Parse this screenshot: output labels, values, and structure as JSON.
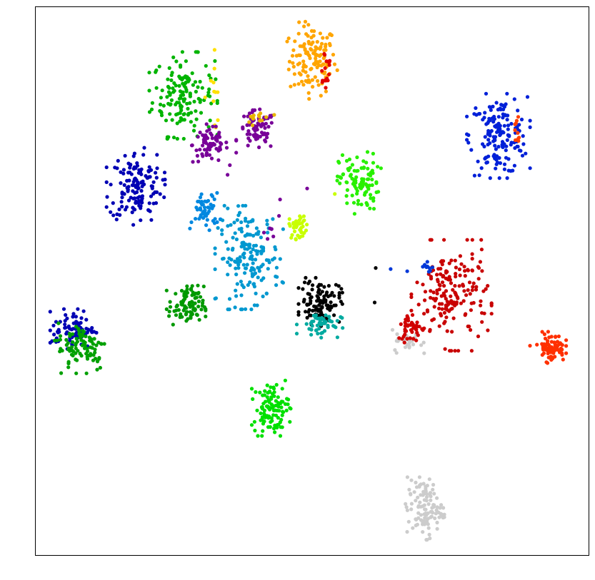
{
  "chart_data": {
    "type": "scatter",
    "title": "",
    "xlabel": "",
    "ylabel": "",
    "xlim": [
      0,
      100
    ],
    "ylim": [
      0,
      100
    ],
    "grid": false,
    "legend": "none",
    "ticks": "none",
    "clusters": [
      {
        "color": "#ffa500",
        "center": [
          50.1,
          90.3
        ],
        "spread": [
          2.1,
          3.2
        ],
        "n": 130
      },
      {
        "color": "#e00000",
        "center": [
          52.4,
          89.0
        ],
        "spread": [
          0.6,
          2.2
        ],
        "n": 18
      },
      {
        "color": "#00b400",
        "center": [
          26.7,
          83.9
        ],
        "spread": [
          2.8,
          3.6
        ],
        "n": 150
      },
      {
        "color": "#ffe000",
        "center": [
          32.1,
          84.5
        ],
        "spread": [
          0.9,
          3.5
        ],
        "n": 12
      },
      {
        "color": "#780098",
        "center": [
          31.6,
          74.9
        ],
        "spread": [
          1.6,
          1.7
        ],
        "n": 70
      },
      {
        "color": "#780098",
        "center": [
          40.0,
          77.4
        ],
        "spread": [
          1.7,
          1.8
        ],
        "n": 70
      },
      {
        "color": "#e8b400",
        "center": [
          40.5,
          79.8
        ],
        "spread": [
          1.2,
          0.8
        ],
        "n": 14
      },
      {
        "color": "#0020d8",
        "center": [
          83.7,
          76.5
        ],
        "spread": [
          2.6,
          3.5
        ],
        "n": 160
      },
      {
        "color": "#ff4000",
        "center": [
          87.1,
          77.3
        ],
        "spread": [
          0.4,
          2.0
        ],
        "n": 10
      },
      {
        "color": "#0000b4",
        "center": [
          18.1,
          67.3
        ],
        "spread": [
          2.4,
          3.2
        ],
        "n": 140
      },
      {
        "color": "#28f000",
        "center": [
          58.5,
          68.0
        ],
        "spread": [
          1.8,
          2.6
        ],
        "n": 100
      },
      {
        "color": "#0088e0",
        "center": [
          30.8,
          62.8
        ],
        "spread": [
          1.2,
          1.6
        ],
        "n": 55
      },
      {
        "color": "#c8ff00",
        "center": [
          47.6,
          60.0
        ],
        "spread": [
          0.9,
          1.1
        ],
        "n": 40
      },
      {
        "color": "#0098d0",
        "center": [
          38.6,
          54.3
        ],
        "spread": [
          2.8,
          4.3
        ],
        "n": 175
      },
      {
        "color": "#780098",
        "center": [
          42.6,
          59.0
        ],
        "spread": [
          0.6,
          0.6
        ],
        "n": 6
      },
      {
        "color": "#c80000",
        "center": [
          75.2,
          47.4
        ],
        "spread": [
          3.3,
          4.6
        ],
        "n": 180
      },
      {
        "color": "#0038d8",
        "center": [
          70.6,
          52.2
        ],
        "spread": [
          0.8,
          0.6
        ],
        "n": 10
      },
      {
        "color": "#000000",
        "center": [
          51.5,
          46.2
        ],
        "spread": [
          1.8,
          2.0
        ],
        "n": 110
      },
      {
        "color": "#00aaa0",
        "center": [
          51.4,
          42.1
        ],
        "spread": [
          1.9,
          1.1
        ],
        "n": 50
      },
      {
        "color": "#009900",
        "center": [
          27.2,
          45.4
        ],
        "spread": [
          1.6,
          1.8
        ],
        "n": 95
      },
      {
        "color": "#0000b4",
        "center": [
          6.8,
          41.3
        ],
        "spread": [
          1.9,
          1.7
        ],
        "n": 85
      },
      {
        "color": "#00a000",
        "center": [
          8.5,
          38.0
        ],
        "spread": [
          2.3,
          2.2
        ],
        "n": 90
      },
      {
        "color": "#cccccc",
        "center": [
          67.4,
          39.0
        ],
        "spread": [
          1.3,
          1.0
        ],
        "n": 35
      },
      {
        "color": "#d00000",
        "center": [
          68.0,
          41.6
        ],
        "spread": [
          1.3,
          1.3
        ],
        "n": 45
      },
      {
        "color": "#ff3000",
        "center": [
          93.3,
          37.9
        ],
        "spread": [
          1.2,
          1.3
        ],
        "n": 80
      },
      {
        "color": "#00e000",
        "center": [
          42.6,
          26.8
        ],
        "spread": [
          1.6,
          2.3
        ],
        "n": 110
      },
      {
        "color": "#cccccc",
        "center": [
          70.4,
          8.5
        ],
        "spread": [
          1.6,
          2.6
        ],
        "n": 110
      }
    ],
    "outliers": [
      {
        "color": "#000000",
        "x": 61.5,
        "y": 52.4
      },
      {
        "color": "#000000",
        "x": 61.3,
        "y": 46.1
      },
      {
        "color": "#0038d8",
        "x": 64.2,
        "y": 52.2
      },
      {
        "color": "#0038d8",
        "x": 67.2,
        "y": 51.8
      },
      {
        "color": "#780098",
        "x": 34.7,
        "y": 69.4
      },
      {
        "color": "#780098",
        "x": 44.2,
        "y": 64.9
      },
      {
        "color": "#780098",
        "x": 49.1,
        "y": 66.9
      },
      {
        "color": "#780098",
        "x": 44.0,
        "y": 61.9
      },
      {
        "color": "#c8ff00",
        "x": 54.1,
        "y": 65.9
      },
      {
        "color": "#ff3000",
        "x": 89.4,
        "y": 38.2
      },
      {
        "color": "#0088e0",
        "x": 27.9,
        "y": 59.6
      }
    ]
  }
}
